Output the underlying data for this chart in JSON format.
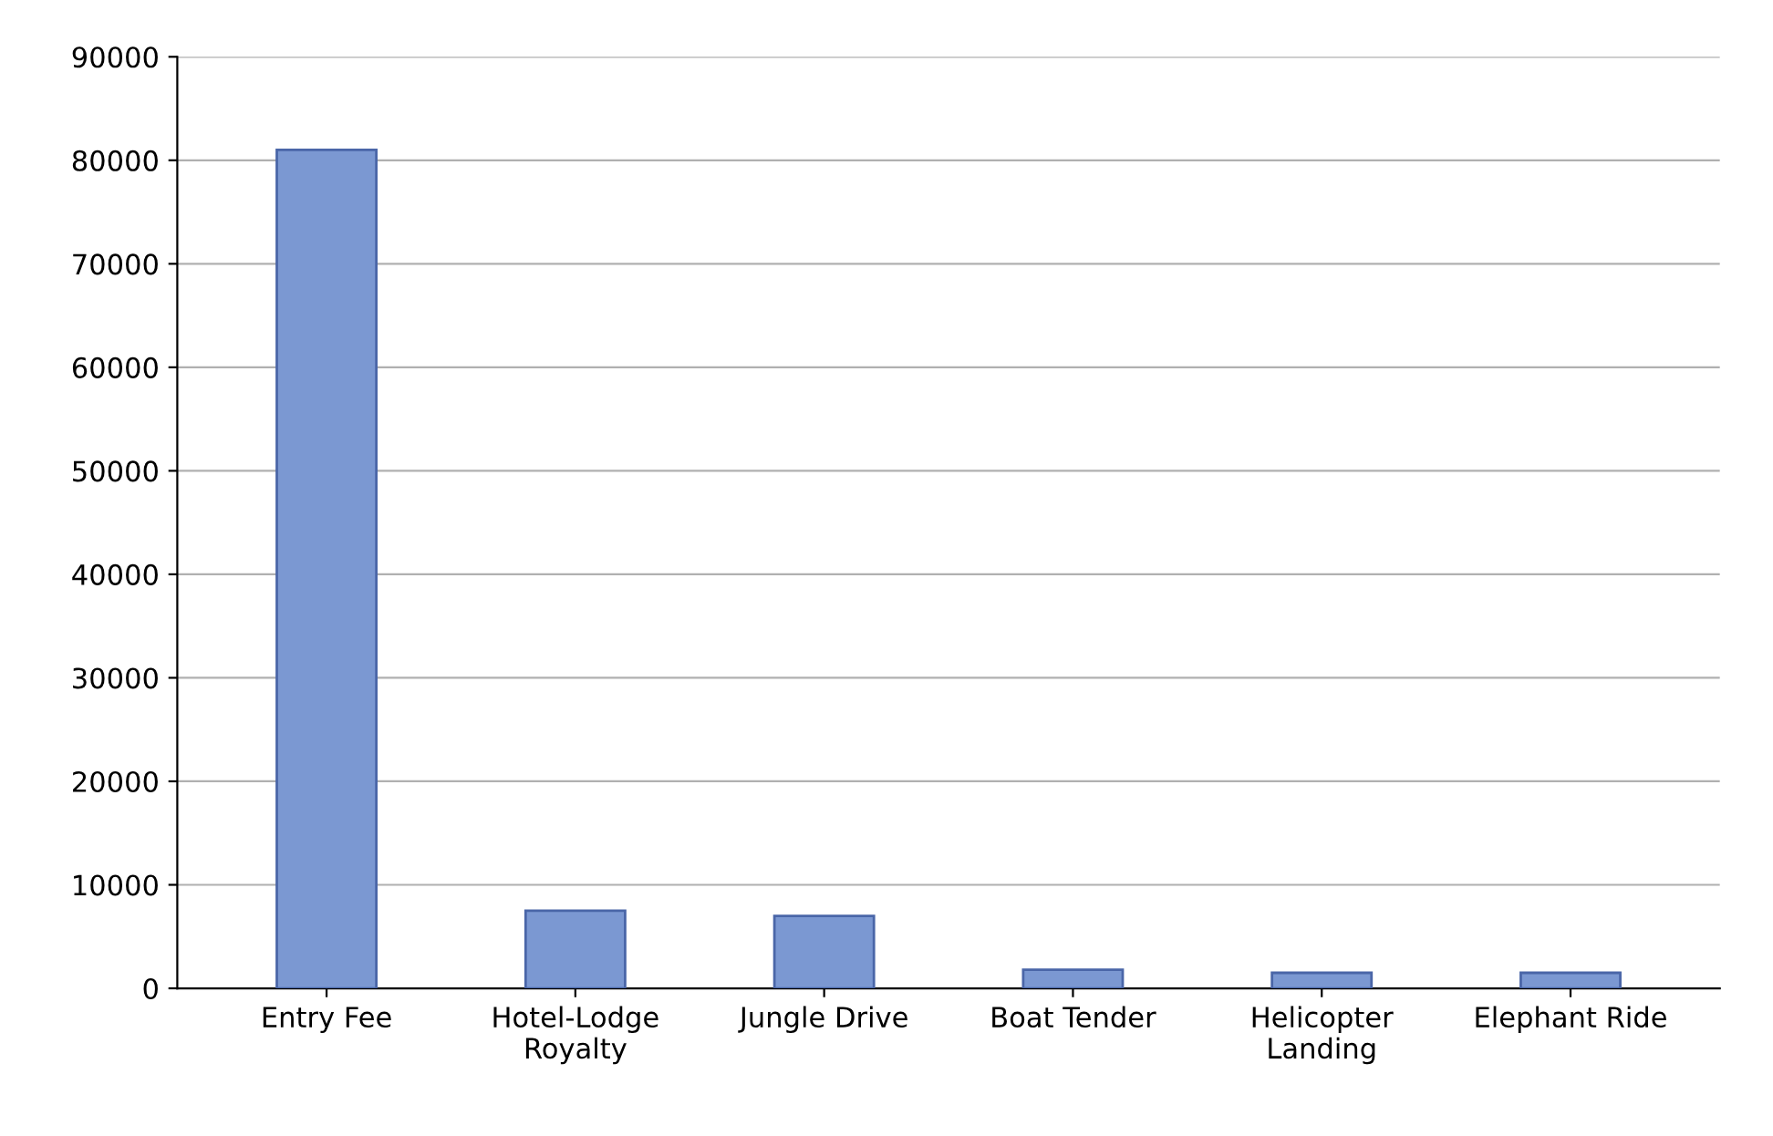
{
  "chart_data": {
    "type": "bar",
    "categories": [
      "Entry Fee",
      "Hotel-Lodge\nRoyalty",
      "Jungle Drive",
      "Boat Tender",
      "Helicopter\nLanding",
      "Elephant Ride"
    ],
    "values": [
      81000,
      7500,
      7000,
      1800,
      1500,
      1500
    ],
    "color": "#7b98d2",
    "ylim": [
      0,
      90000
    ],
    "yticks": [
      0,
      10000,
      20000,
      30000,
      40000,
      50000,
      60000,
      70000,
      80000,
      90000
    ],
    "grid": "y",
    "legend": false
  }
}
